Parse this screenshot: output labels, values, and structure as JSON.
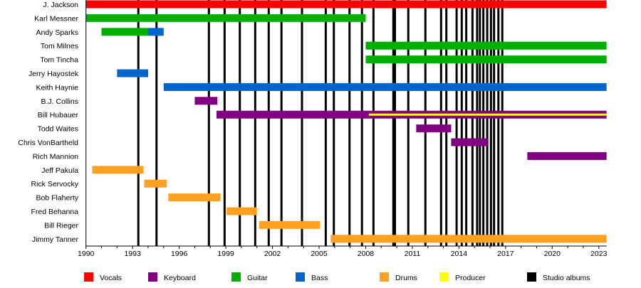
{
  "chart_data": {
    "type": "timeline",
    "title": "",
    "xlim": [
      1990,
      2023.5
    ],
    "x_ticks": [
      "1990",
      "1993",
      "1996",
      "1999",
      "2002",
      "2005",
      "2008",
      "2011",
      "2014",
      "2017",
      "2020",
      "2023"
    ],
    "x_tick_values": [
      1990,
      1993,
      1996,
      1999,
      2002,
      2005,
      2008,
      2011,
      2014,
      2017,
      2020,
      2023
    ],
    "colors": {
      "Vocals": "#ff0000",
      "Keyboard": "#800080",
      "Guitar": "#00b000",
      "Bass": "#0066cc",
      "Drums": "#ffa020",
      "Producer": "#ffff00",
      "Studio albums": "#000000"
    },
    "members": [
      {
        "name": "J. Jackson",
        "bars": [
          {
            "role": "Vocals",
            "start": 1990.0,
            "end": 2023.5
          }
        ]
      },
      {
        "name": "Karl Messner",
        "bars": [
          {
            "role": "Guitar",
            "start": 1990.0,
            "end": 2008.0
          }
        ]
      },
      {
        "name": "Andy Sparks",
        "bars": [
          {
            "role": "Guitar",
            "start": 1991.0,
            "end": 1994.0
          },
          {
            "role": "Bass",
            "start": 1994.0,
            "end": 1995.0
          }
        ]
      },
      {
        "name": "Tom Milnes",
        "bars": [
          {
            "role": "Guitar",
            "start": 2008.0,
            "end": 2023.5
          }
        ]
      },
      {
        "name": "Tom Tincha",
        "bars": [
          {
            "role": "Guitar",
            "start": 2008.0,
            "end": 2023.5
          }
        ]
      },
      {
        "name": "Jerry Hayostek",
        "bars": [
          {
            "role": "Bass",
            "start": 1992.0,
            "end": 1994.0
          }
        ]
      },
      {
        "name": "Keith Haynie",
        "bars": [
          {
            "role": "Bass",
            "start": 1995.0,
            "end": 2023.5
          }
        ]
      },
      {
        "name": "B.J. Collins",
        "bars": [
          {
            "role": "Keyboard",
            "start": 1997.0,
            "end": 1998.45
          }
        ]
      },
      {
        "name": "Bill Hubauer",
        "bars": [
          {
            "role": "Keyboard",
            "start": 1998.4,
            "end": 2023.5
          },
          {
            "role": "Producer",
            "start": 2008.2,
            "end": 2023.5
          }
        ]
      },
      {
        "name": "Todd Waites",
        "bars": [
          {
            "role": "Keyboard",
            "start": 2011.25,
            "end": 2013.5
          }
        ]
      },
      {
        "name": "Chris VonBartheld",
        "bars": [
          {
            "role": "Keyboard",
            "start": 2013.5,
            "end": 2015.85
          }
        ]
      },
      {
        "name": "Rich Mannion",
        "bars": [
          {
            "role": "Keyboard",
            "start": 2018.4,
            "end": 2023.5
          }
        ]
      },
      {
        "name": "Jeff Pakula",
        "bars": [
          {
            "role": "Drums",
            "start": 1990.4,
            "end": 1993.7
          }
        ]
      },
      {
        "name": "Rick Servocky",
        "bars": [
          {
            "role": "Drums",
            "start": 1993.75,
            "end": 1995.2
          }
        ]
      },
      {
        "name": "Bob Flaherty",
        "bars": [
          {
            "role": "Drums",
            "start": 1995.3,
            "end": 1998.65
          }
        ]
      },
      {
        "name": "Fred Behanna",
        "bars": [
          {
            "role": "Drums",
            "start": 1999.05,
            "end": 2001.0
          }
        ]
      },
      {
        "name": "Bill Rieger",
        "bars": [
          {
            "role": "Drums",
            "start": 2001.15,
            "end": 2005.05
          }
        ]
      },
      {
        "name": "Jimmy Tanner",
        "bars": [
          {
            "role": "Drums",
            "start": 2005.75,
            "end": 2023.5
          }
        ]
      }
    ],
    "studio_albums": [
      1993.37,
      1994.54,
      1997.91,
      1998.92,
      1999.9,
      2000.89,
      2001.76,
      2002.58,
      2003.9,
      2005.43,
      2005.95,
      2006.96,
      2007.76,
      2008.5,
      2009.78,
      2009.88,
      2010.74,
      2011.84,
      2012.85,
      2013.19,
      2013.85,
      2014.18,
      2014.47,
      2014.87,
      2015.17,
      2015.35,
      2015.57,
      2015.82,
      2016.06,
      2016.26,
      2016.54,
      2016.79
    ],
    "legend": [
      "Vocals",
      "Keyboard",
      "Guitar",
      "Bass",
      "Drums",
      "Producer",
      "Studio albums"
    ],
    "legend_position": "bottom"
  }
}
